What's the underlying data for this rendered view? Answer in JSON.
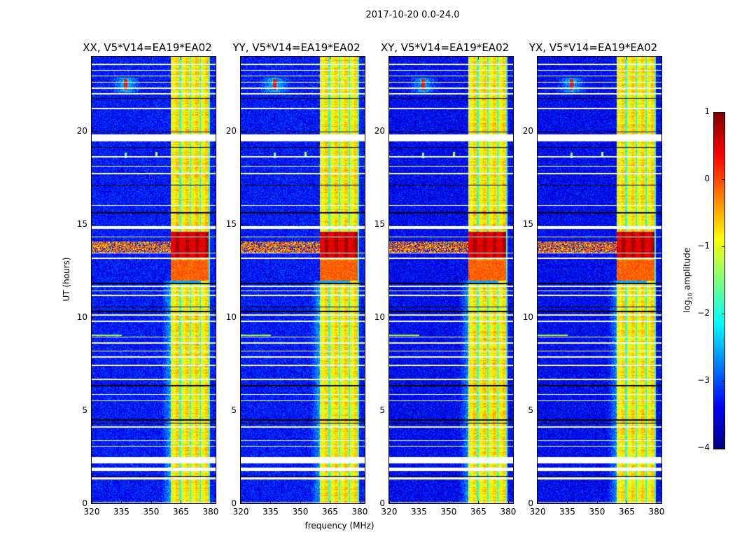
{
  "chart_data": {
    "type": "heatmap",
    "title": "2017-10-20 0.0-24.0",
    "xlabel": "frequency (MHz)",
    "ylabel": "UT (hours)",
    "xlim": [
      320,
      382.5
    ],
    "ylim": [
      0,
      24
    ],
    "xticks": [
      "320",
      "335",
      "350",
      "365",
      "380"
    ],
    "xtick_values": [
      320,
      335,
      350,
      365,
      380
    ],
    "yticks": [
      "0",
      "5",
      "10",
      "15",
      "20"
    ],
    "ytick_values": [
      0,
      5,
      10,
      15,
      20
    ],
    "panels": [
      {
        "title": "XX, V5*V14=EA19*EA02"
      },
      {
        "title": "YY, V5*V14=EA19*EA02"
      },
      {
        "title": "XY, V5*V14=EA19*EA02"
      },
      {
        "title": "YX, V5*V14=EA19*EA02"
      }
    ],
    "colorbar": {
      "label_main": "log",
      "label_sub": "10",
      "label_rest": " amplitude",
      "colormap": "jet",
      "vmin": -4,
      "vmax": 1,
      "ticks": [
        "1",
        "0",
        "−1",
        "−2",
        "−3",
        "−4"
      ],
      "tick_values": [
        1,
        0,
        -1,
        -2,
        -3,
        -4
      ]
    },
    "features": {
      "background_log_amp": -3.3,
      "rfi_band_mhz": [
        359.6,
        378.8
      ],
      "rfi_band_log_amp": -0.9,
      "band_notches_mhz": [
        364.5,
        369.5,
        374.5
      ],
      "strong_rfi_hours": [
        13.2,
        14.6
      ],
      "strong_rfi_log_amp": 0.5,
      "moderate_rfi_hours": [
        12.0,
        13.1
      ],
      "point_source": {
        "freq_mhz": 337,
        "hours": [
          22.2,
          22.8
        ],
        "log_amp": 0.3
      },
      "flagged_hours": [
        [
          23.55,
          23.65
        ],
        [
          23.25,
          23.32
        ],
        [
          22.95,
          23.02
        ],
        [
          22.62,
          22.68
        ],
        [
          22.3,
          22.36
        ],
        [
          22.0,
          22.06
        ],
        [
          21.2,
          21.28
        ],
        [
          19.45,
          19.85
        ],
        [
          18.6,
          18.66
        ],
        [
          18.1,
          18.16
        ],
        [
          17.7,
          17.76
        ],
        [
          16.0,
          16.06
        ],
        [
          14.75,
          14.9
        ],
        [
          14.3,
          14.35
        ],
        [
          13.45,
          13.5
        ],
        [
          13.15,
          13.22
        ],
        [
          11.65,
          11.72
        ],
        [
          11.4,
          11.47
        ],
        [
          11.15,
          11.22
        ],
        [
          10.1,
          10.16
        ],
        [
          9.75,
          9.82
        ],
        [
          8.95,
          8.99
        ],
        [
          8.6,
          8.66
        ],
        [
          8.18,
          8.22
        ],
        [
          7.85,
          7.9
        ],
        [
          7.4,
          7.45
        ],
        [
          6.65,
          6.7
        ],
        [
          5.85,
          5.9
        ],
        [
          5.5,
          5.55
        ],
        [
          4.1,
          4.15
        ],
        [
          3.35,
          3.4
        ],
        [
          3.05,
          3.1
        ],
        [
          2.15,
          2.5
        ],
        [
          1.75,
          1.95
        ],
        [
          1.3,
          1.4
        ],
        [
          0.05,
          0.1
        ]
      ],
      "black_hours": [
        [
          21.75,
          21.8
        ],
        [
          19.95,
          20.0
        ],
        [
          19.12,
          19.17
        ],
        [
          17.1,
          17.14
        ],
        [
          15.6,
          15.65
        ],
        [
          11.8,
          11.86
        ],
        [
          10.55,
          10.6
        ],
        [
          10.3,
          10.36
        ],
        [
          6.3,
          6.36
        ],
        [
          4.45,
          4.55
        ],
        [
          4.3,
          4.36
        ],
        [
          2.35,
          2.42
        ],
        [
          1.45,
          1.5
        ]
      ]
    }
  }
}
